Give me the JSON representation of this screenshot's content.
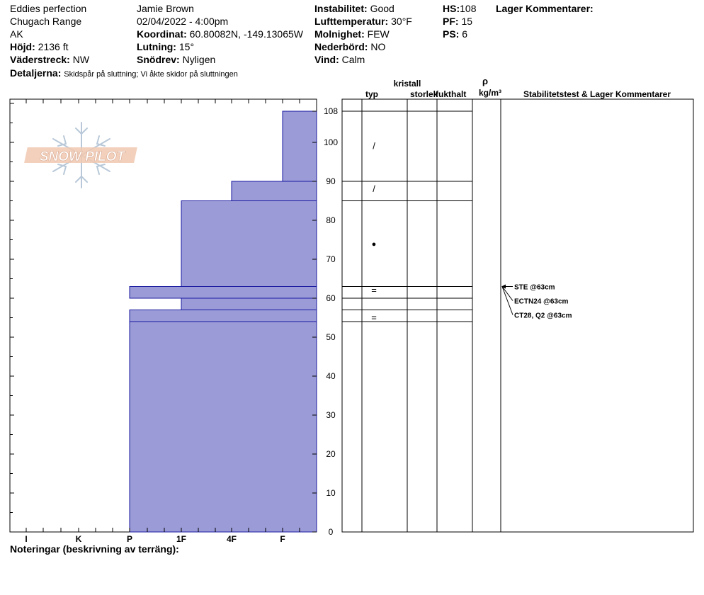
{
  "header": {
    "location": "Eddies perfection",
    "range": "Chugach Range",
    "state": "AK",
    "elevation_label": "Höjd:",
    "elevation": "2136 ft",
    "aspect_label": "Väderstreck:",
    "aspect": "NW",
    "details_label": "Detaljerna:",
    "details": "Skidspår på sluttning;  Vi åkte skidor på sluttningen",
    "observer": "Jamie Brown",
    "datetime": "02/04/2022 - 4:00pm",
    "coord_label": "Koordinat:",
    "coord": "60.80082N, -149.13065W",
    "slope_label": "Lutning:",
    "slope": "15°",
    "snowdrift_label": "Snödrev:",
    "snowdrift": "Nyligen",
    "stability_label": "Instabilitet:",
    "stability": "Good",
    "airtemp_label": "Lufttemperatur:",
    "airtemp": "30°F",
    "sky_label": "Molnighet:",
    "sky": "FEW",
    "precip_label": "Nederbörd:",
    "precip": "NO",
    "wind_label": "Vind:",
    "wind": "Calm",
    "hs_label": "HS:",
    "hs": "108",
    "pf_label": "PF:",
    "pf": "15",
    "ps_label": "PS:",
    "ps": "6",
    "layer_comments_label": "Lager Kommentarer:"
  },
  "logo_text": "SNOW PILOT",
  "columns": {
    "crystal": "kristall",
    "type": "typ",
    "size": "storlek",
    "moisture": "fukthalt",
    "rho": "ρ",
    "density_unit": "kg/m³",
    "stability_comments": "Stabilitetstest & Lager Kommentarer"
  },
  "notes_label": "Noteringar (beskrivning av terräng):",
  "chart_data": {
    "type": "bar",
    "title": "",
    "xlabel": "",
    "ylabel": "",
    "ylim": [
      0,
      110
    ],
    "yticks": [
      0,
      10,
      20,
      30,
      40,
      50,
      60,
      70,
      80,
      90,
      100,
      108
    ],
    "hardness_scale": [
      "I",
      "K",
      "P",
      "1F",
      "4F",
      "F"
    ],
    "layers": [
      {
        "bottom": 90,
        "top": 108,
        "hardness": "F"
      },
      {
        "bottom": 85,
        "top": 90,
        "hardness": "4F"
      },
      {
        "bottom": 63,
        "top": 85,
        "hardness": "1F"
      },
      {
        "bottom": 60,
        "top": 63,
        "hardness": "P"
      },
      {
        "bottom": 57,
        "top": 60,
        "hardness": "1F"
      },
      {
        "bottom": 54,
        "top": 57,
        "hardness": "P"
      },
      {
        "bottom": 0,
        "top": 54,
        "hardness": "P"
      }
    ],
    "layer_boundaries": [
      108,
      90,
      85,
      63,
      60,
      57,
      54
    ],
    "grain_symbols": [
      {
        "height": 99,
        "symbol": "/"
      },
      {
        "height": 88,
        "symbol": "/"
      },
      {
        "height": 74,
        "symbol": "●"
      },
      {
        "height": 62,
        "symbol": "="
      },
      {
        "height": 55,
        "symbol": "="
      }
    ],
    "stability_tests": [
      {
        "height": 63,
        "label": "STE @63cm"
      },
      {
        "height": 63,
        "label": "ECTN24 @63cm"
      },
      {
        "height": 63,
        "label": "CT28, Q2 @63cm"
      }
    ]
  }
}
